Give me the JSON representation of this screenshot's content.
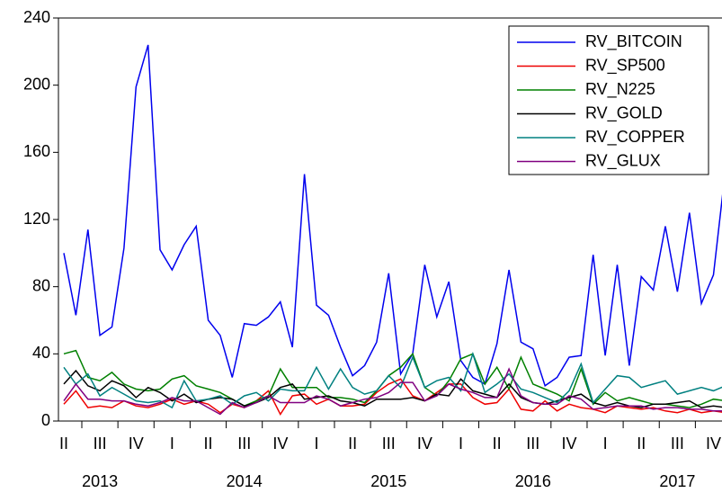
{
  "chart_data": {
    "type": "line",
    "categories": [
      "II",
      null,
      null,
      "III",
      null,
      null,
      "IV",
      null,
      null,
      "I",
      null,
      null,
      "II",
      null,
      null,
      "III",
      null,
      null,
      "IV",
      null,
      null,
      "I",
      null,
      null,
      "II",
      null,
      null,
      "III",
      null,
      null,
      "IV",
      null,
      null,
      "I",
      null,
      null,
      "II",
      null,
      null,
      "III",
      null,
      null,
      "IV",
      null,
      null,
      "I",
      null,
      null,
      "II",
      null,
      null,
      "III",
      null,
      null,
      "IV",
      null
    ],
    "years": [
      "2013",
      "2014",
      "2015",
      "2016",
      "2017"
    ],
    "ylim": [
      0,
      240
    ],
    "yticks": [
      0,
      40,
      80,
      120,
      160,
      200,
      240
    ],
    "series": [
      {
        "name": "RV_BITCOIN",
        "color": "#0000ee",
        "values": [
          100,
          63,
          114,
          51,
          56,
          103,
          199,
          224,
          102,
          90,
          105,
          116,
          60,
          51,
          26,
          58,
          57,
          62,
          71,
          44,
          147,
          69,
          63,
          44,
          27,
          33,
          47,
          88,
          28,
          40,
          93,
          62,
          83,
          36,
          26,
          22,
          46,
          90,
          47,
          43,
          21,
          26,
          38,
          39,
          99,
          39,
          93,
          33,
          86,
          78,
          116,
          77,
          124,
          70,
          87,
          150
        ]
      },
      {
        "name": "RV_SP500",
        "color": "#ee0000",
        "values": [
          10,
          18,
          8,
          9,
          8,
          12,
          9,
          8,
          10,
          13,
          10,
          12,
          10,
          5,
          10,
          8,
          12,
          18,
          4,
          15,
          16,
          10,
          13,
          9,
          9,
          10,
          17,
          22,
          25,
          15,
          12,
          17,
          22,
          22,
          14,
          10,
          11,
          19,
          7,
          6,
          12,
          6,
          10,
          8,
          7,
          5,
          9,
          8,
          7,
          8,
          6,
          5,
          7,
          5,
          6,
          5
        ]
      },
      {
        "name": "RV_N225",
        "color": "#008000",
        "values": [
          40,
          42,
          26,
          24,
          29,
          22,
          19,
          18,
          19,
          25,
          27,
          21,
          19,
          17,
          13,
          9,
          12,
          15,
          31,
          20,
          20,
          20,
          14,
          14,
          13,
          11,
          18,
          27,
          32,
          40,
          20,
          15,
          24,
          37,
          40,
          22,
          32,
          19,
          38,
          22,
          19,
          16,
          12,
          31,
          10,
          17,
          12,
          14,
          12,
          10,
          10,
          9,
          8,
          10,
          13,
          12
        ]
      },
      {
        "name": "RV_GOLD",
        "color": "#000000",
        "values": [
          22,
          30,
          21,
          18,
          24,
          21,
          14,
          20,
          17,
          12,
          16,
          11,
          13,
          14,
          13,
          9,
          11,
          14,
          20,
          22,
          13,
          14,
          15,
          12,
          11,
          9,
          13,
          13,
          13,
          14,
          12,
          16,
          15,
          25,
          18,
          16,
          14,
          22,
          14,
          11,
          10,
          12,
          14,
          16,
          11,
          9,
          11,
          9,
          8,
          10,
          10,
          11,
          12,
          8,
          9,
          8
        ]
      },
      {
        "name": "RV_COPPER",
        "color": "#008080",
        "values": [
          32,
          22,
          28,
          15,
          20,
          16,
          12,
          11,
          12,
          8,
          24,
          12,
          13,
          15,
          10,
          15,
          17,
          12,
          19,
          18,
          18,
          32,
          19,
          31,
          20,
          16,
          18,
          27,
          20,
          38,
          20,
          24,
          26,
          18,
          40,
          17,
          22,
          28,
          19,
          17,
          14,
          11,
          18,
          34,
          11,
          19,
          27,
          26,
          20,
          22,
          24,
          16,
          18,
          20,
          18,
          21
        ]
      },
      {
        "name": "RV_GLUX",
        "color": "#800080",
        "values": [
          12,
          22,
          13,
          13,
          12,
          12,
          10,
          9,
          11,
          14,
          12,
          12,
          8,
          4,
          11,
          8,
          11,
          15,
          11,
          11,
          11,
          15,
          13,
          9,
          11,
          13,
          14,
          17,
          23,
          23,
          12,
          15,
          22,
          19,
          17,
          14,
          14,
          31,
          15,
          11,
          10,
          10,
          15,
          13,
          7,
          8,
          9,
          9,
          9,
          7,
          8,
          8,
          7,
          7,
          6,
          6
        ]
      }
    ]
  }
}
